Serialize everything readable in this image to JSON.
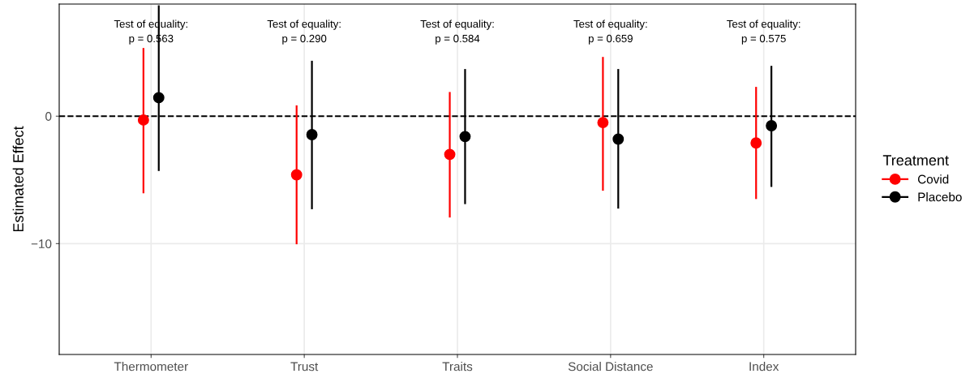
{
  "chart_data": {
    "type": "scatter",
    "ylabel": "Estimated Effect",
    "legend_title": "Treatment",
    "legend": "right",
    "grid": true,
    "marker": "circle",
    "categories": [
      "Thermometer",
      "Trust",
      "Traits",
      "Social Distance",
      "Index"
    ],
    "ylim": [
      -18.7,
      8.8
    ],
    "yticks": [
      {
        "value": -10,
        "label": "−10"
      },
      0
    ],
    "series": [
      {
        "name": "Covid",
        "color": "#ff0000",
        "values": [
          -0.3,
          -4.6,
          -3.0,
          -0.5,
          -2.1
        ],
        "errors": [
          [
            -6.05,
            5.35
          ],
          [
            -10.05,
            0.85
          ],
          [
            -7.95,
            1.9
          ],
          [
            -5.85,
            4.65
          ],
          [
            -6.5,
            2.3
          ]
        ]
      },
      {
        "name": "Placebo",
        "color": "#000000",
        "values": [
          1.45,
          -1.45,
          -1.6,
          -1.8,
          -0.75
        ],
        "errors": [
          [
            -4.3,
            8.7
          ],
          [
            -7.3,
            4.35
          ],
          [
            -6.9,
            3.7
          ],
          [
            -7.25,
            3.7
          ],
          [
            -5.55,
            3.95
          ]
        ]
      }
    ],
    "ref_lines": [
      {
        "axis": "y",
        "value": 0,
        "color": "#000000",
        "line_style": "dashed"
      }
    ],
    "annotations": [
      "Test of equality:\np = 0.563",
      "Test of equality:\np = 0.290",
      "Test of equality:\np = 0.584",
      "Test of equality:\np = 0.659",
      "Test of equality:\np = 0.575"
    ]
  }
}
